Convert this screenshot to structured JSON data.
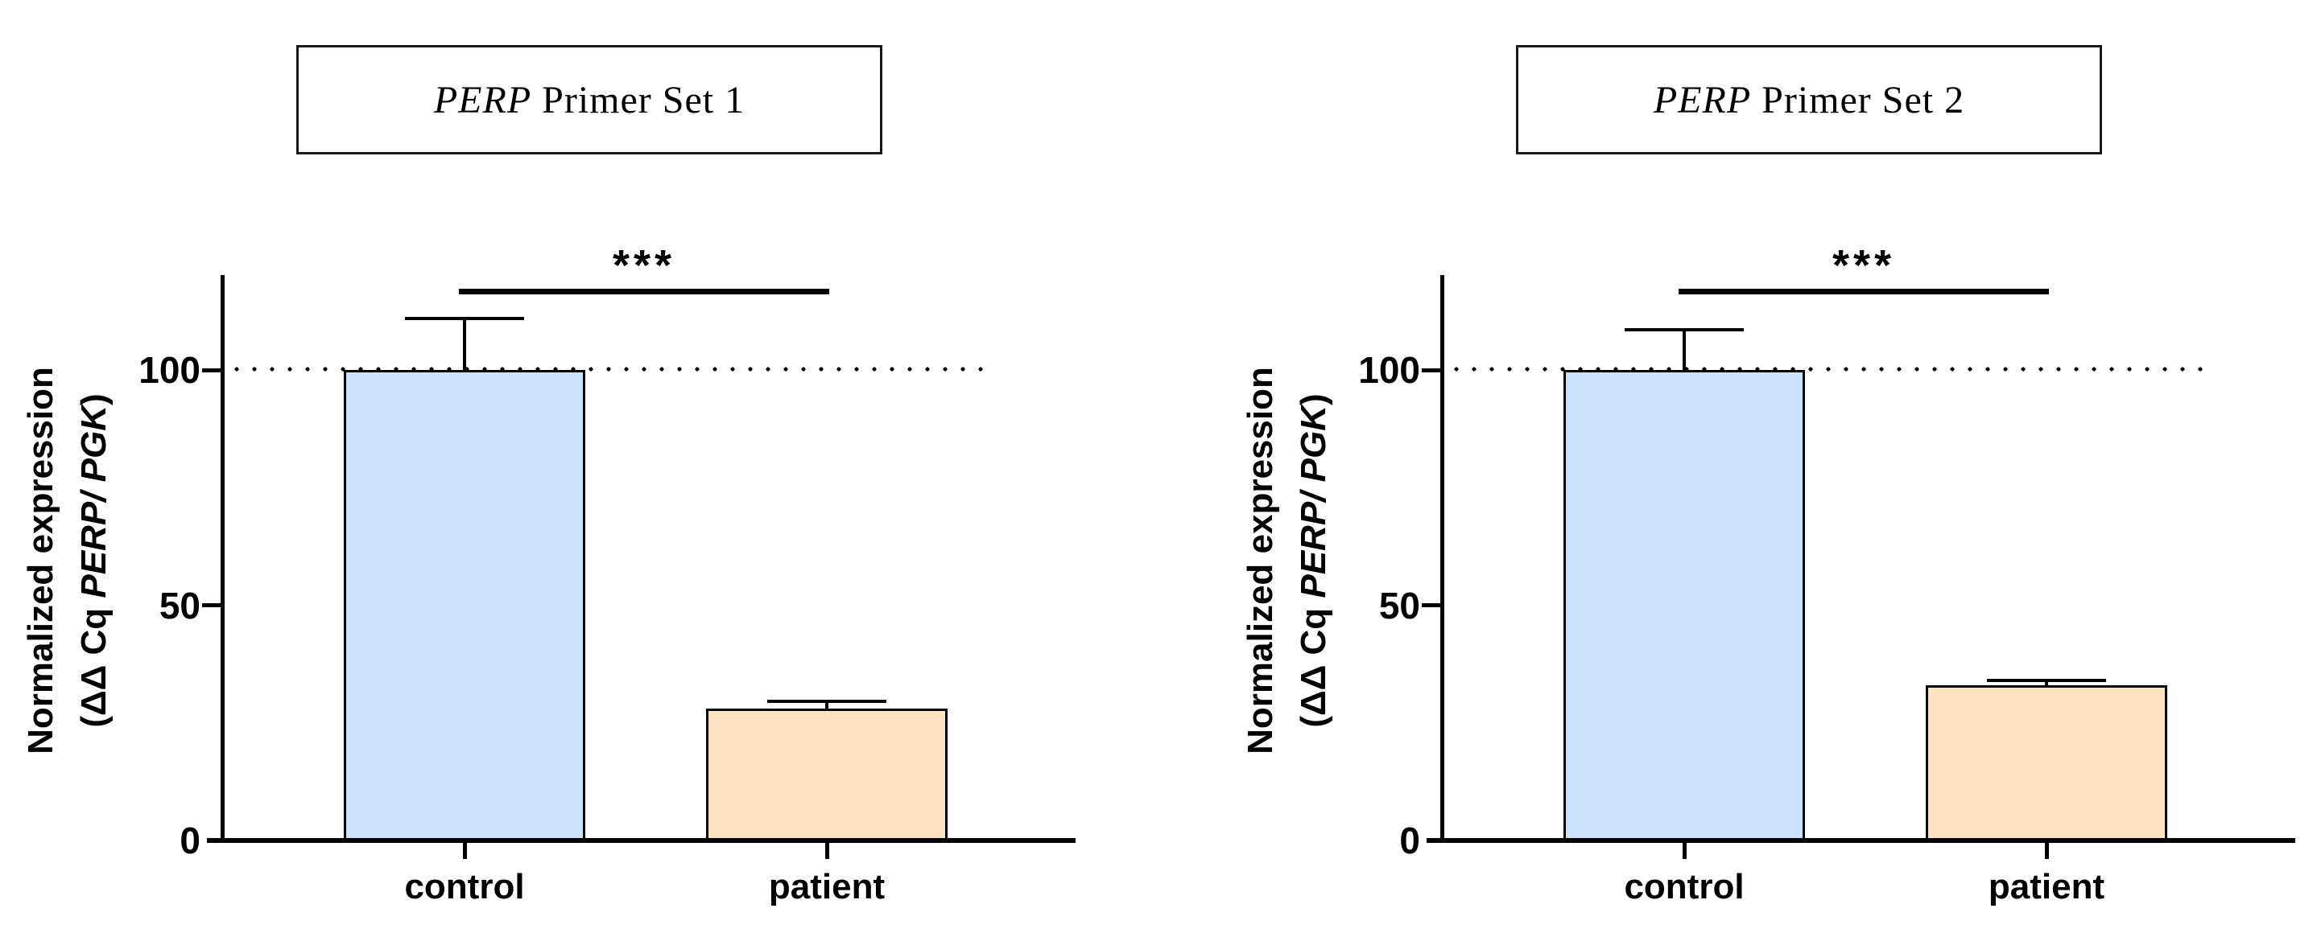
{
  "figure": {
    "background": "#ffffff",
    "description_visible_text_only": true
  },
  "colors": {
    "control_fill": "#C9E2F8",
    "patient_fill": "#FCE3C2",
    "outline": "#000000",
    "reference_dots": "#000000"
  },
  "chart_data": [
    {
      "type": "bar",
      "title": "PERP Primer Set 1",
      "title_segments": [
        {
          "text": "PERP",
          "italic": true
        },
        {
          "text": " Primer Set 1",
          "italic": false
        }
      ],
      "categories": [
        "control",
        "patient"
      ],
      "values": [
        100,
        28
      ],
      "errors_plus": [
        11,
        1.5
      ],
      "bar_colors": [
        "#C9E2F8",
        "#FCE3C2"
      ],
      "ylabel_line1": "Normalized expression",
      "ylabel_line2": "(ΔΔ Cq PERP/ PGK)",
      "ylabel_line2_segments": [
        {
          "text": "(ΔΔ Cq ",
          "italic": false
        },
        {
          "text": "PERP/ PGK",
          "italic": true
        },
        {
          "text": ")",
          "italic": false
        }
      ],
      "yticks": [
        0,
        50,
        100
      ],
      "ytick_labels": [
        "0",
        "50",
        "100"
      ],
      "ylim": [
        0,
        120
      ],
      "reference_line_y": 100,
      "grid": false,
      "legend": false,
      "significance": "***",
      "significance_between": [
        "control",
        "patient"
      ]
    },
    {
      "type": "bar",
      "title": "PERP Primer Set 2",
      "title_segments": [
        {
          "text": "PERP",
          "italic": true
        },
        {
          "text": " Primer Set 2",
          "italic": false
        }
      ],
      "categories": [
        "control",
        "patient"
      ],
      "values": [
        100,
        33
      ],
      "errors_plus": [
        8.5,
        1
      ],
      "bar_colors": [
        "#C9E2F8",
        "#FCE3C2"
      ],
      "ylabel_line1": "Normalized expression",
      "ylabel_line2": "(ΔΔ Cq PERP/ PGK)",
      "ylabel_line2_segments": [
        {
          "text": "(ΔΔ Cq ",
          "italic": false
        },
        {
          "text": "PERP/ PGK",
          "italic": true
        },
        {
          "text": ")",
          "italic": false
        }
      ],
      "yticks": [
        0,
        50,
        100
      ],
      "ytick_labels": [
        "0",
        "50",
        "100"
      ],
      "ylim": [
        0,
        120
      ],
      "reference_line_y": 100,
      "grid": false,
      "legend": false,
      "significance": "***",
      "significance_between": [
        "control",
        "patient"
      ]
    }
  ]
}
